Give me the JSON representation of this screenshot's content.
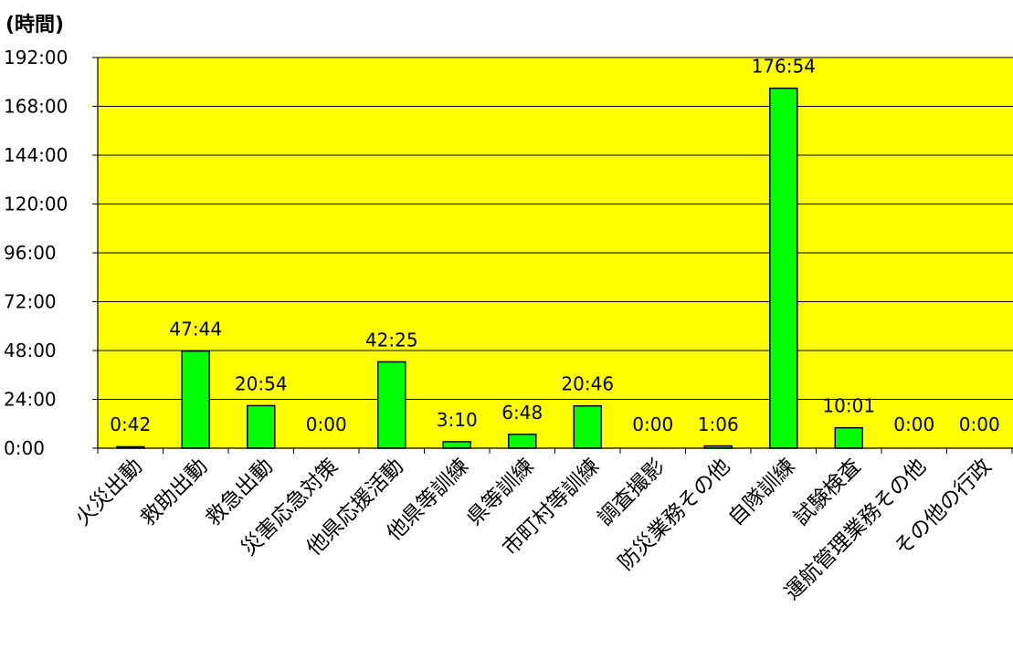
{
  "chart_data": {
    "type": "bar",
    "unit_label": "(時間)",
    "categories": [
      "火災出動",
      "救助出動",
      "救急出動",
      "災害応急対策",
      "他県応援活動",
      "他県等訓練",
      "県等訓練",
      "市町村等訓練",
      "調査撮影",
      "防災業務その他",
      "自隊訓練",
      "試験検査",
      "運航管理業務その他",
      "その他の行政"
    ],
    "value_labels": [
      "0:42",
      "47:44",
      "20:54",
      "0:00",
      "42:25",
      "3:10",
      "6:48",
      "20:46",
      "0:00",
      "1:06",
      "176:54",
      "10:01",
      "0:00",
      "0:00"
    ],
    "values": [
      0.7,
      47.733,
      20.9,
      0,
      42.417,
      3.167,
      6.8,
      20.767,
      0,
      1.1,
      176.9,
      10.017,
      0,
      0
    ],
    "ylim": [
      0,
      192
    ],
    "yticks": [
      0,
      24,
      48,
      72,
      96,
      120,
      144,
      168,
      192
    ],
    "ytick_labels": [
      "0:00",
      "24:00",
      "48:00",
      "72:00",
      "96:00",
      "120:00",
      "144:00",
      "168:00",
      "192:00"
    ],
    "grid": true,
    "colors": {
      "plot_background": "#ffff00",
      "bar_fill": "#00ff00",
      "bar_stroke": "#000000",
      "grid": "#000000"
    }
  }
}
